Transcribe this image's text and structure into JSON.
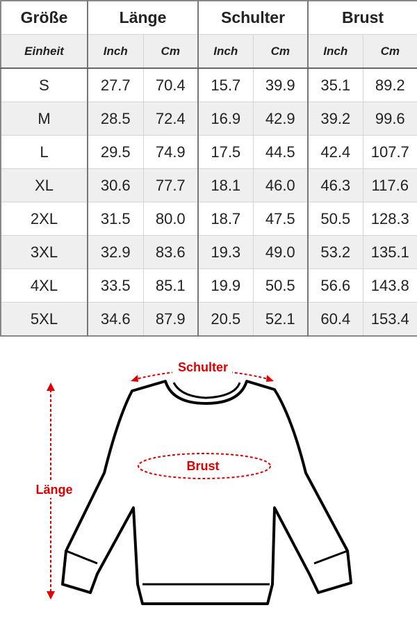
{
  "table": {
    "headers": [
      "Größe",
      "Länge",
      "Schulter",
      "Brust"
    ],
    "unit_row": {
      "label": "Einheit",
      "units": [
        "Inch",
        "Cm",
        "Inch",
        "Cm",
        "Inch",
        "Cm"
      ]
    },
    "rows": [
      {
        "size": "S",
        "values": [
          "27.7",
          "70.4",
          "15.7",
          "39.9",
          "35.1",
          "89.2"
        ]
      },
      {
        "size": "M",
        "values": [
          "28.5",
          "72.4",
          "16.9",
          "42.9",
          "39.2",
          "99.6"
        ]
      },
      {
        "size": "L",
        "values": [
          "29.5",
          "74.9",
          "17.5",
          "44.5",
          "42.4",
          "107.7"
        ]
      },
      {
        "size": "XL",
        "values": [
          "30.6",
          "77.7",
          "18.1",
          "46.0",
          "46.3",
          "117.6"
        ]
      },
      {
        "size": "2XL",
        "values": [
          "31.5",
          "80.0",
          "18.7",
          "47.5",
          "50.5",
          "128.3"
        ]
      },
      {
        "size": "3XL",
        "values": [
          "32.9",
          "83.6",
          "19.3",
          "49.0",
          "53.2",
          "135.1"
        ]
      },
      {
        "size": "4XL",
        "values": [
          "33.5",
          "85.1",
          "19.9",
          "50.5",
          "56.6",
          "143.8"
        ]
      },
      {
        "size": "5XL",
        "values": [
          "34.6",
          "87.9",
          "20.5",
          "52.1",
          "60.4",
          "153.4"
        ]
      }
    ]
  },
  "diagram": {
    "labels": {
      "shoulder": "Schulter",
      "chest": "Brust",
      "length": "Länge"
    },
    "accent_color": "#e00000"
  }
}
